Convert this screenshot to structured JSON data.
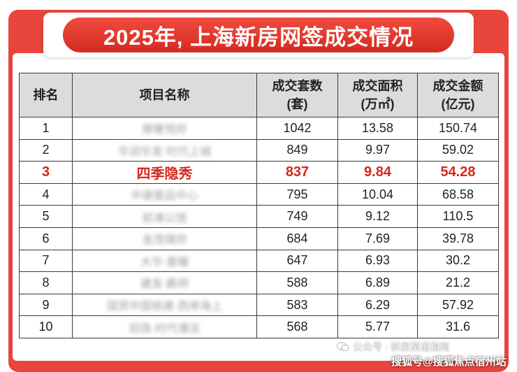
{
  "title": "2025年, 上海新房网签成交情况",
  "table": {
    "headers": {
      "rank": "排名",
      "name": "项目名称",
      "units_line1": "成交套数",
      "units_line2": "(套)",
      "area_line1": "成交面积",
      "area_line2": "(万㎡)",
      "amount_line1": "成交金额",
      "amount_line2": "(亿元)"
    },
    "rows": [
      {
        "rank": "1",
        "name": "御奢悦府",
        "units": "1042",
        "area": "13.58",
        "amount": "150.74"
      },
      {
        "rank": "2",
        "name": "华润华发·时代上城",
        "units": "849",
        "area": "9.97",
        "amount": "59.02"
      },
      {
        "rank": "3",
        "name": "四季隐秀",
        "units": "837",
        "area": "9.84",
        "amount": "54.28"
      },
      {
        "rank": "4",
        "name": "中建壹品中心",
        "units": "795",
        "area": "10.04",
        "amount": "68.58"
      },
      {
        "rank": "5",
        "name": "前滩公馆",
        "units": "749",
        "area": "9.12",
        "amount": "110.5"
      },
      {
        "rank": "6",
        "name": "金茂璞府",
        "units": "684",
        "area": "7.69",
        "amount": "39.78"
      },
      {
        "rank": "7",
        "name": "大华·壹曜",
        "units": "647",
        "area": "6.93",
        "amount": "30.2"
      },
      {
        "rank": "8",
        "name": "建发·鹏玥",
        "units": "588",
        "area": "6.89",
        "amount": "21.2"
      },
      {
        "rank": "9",
        "name": "国贸中国铁建·西岸海上",
        "units": "583",
        "area": "6.29",
        "amount": "57.92"
      },
      {
        "rank": "10",
        "name": "招商·时代潮派",
        "units": "568",
        "area": "5.77",
        "amount": "31.6"
      }
    ],
    "highlight_rank": "3"
  },
  "watermark": {
    "line1": "公众号 · 新房渠道指南",
    "line2": "搜狐号@搜狐焦点宿州站"
  },
  "colors": {
    "frame_red": "#e8453c",
    "highlight_red": "#d8261b",
    "header_gray": "#dcdcdc"
  }
}
